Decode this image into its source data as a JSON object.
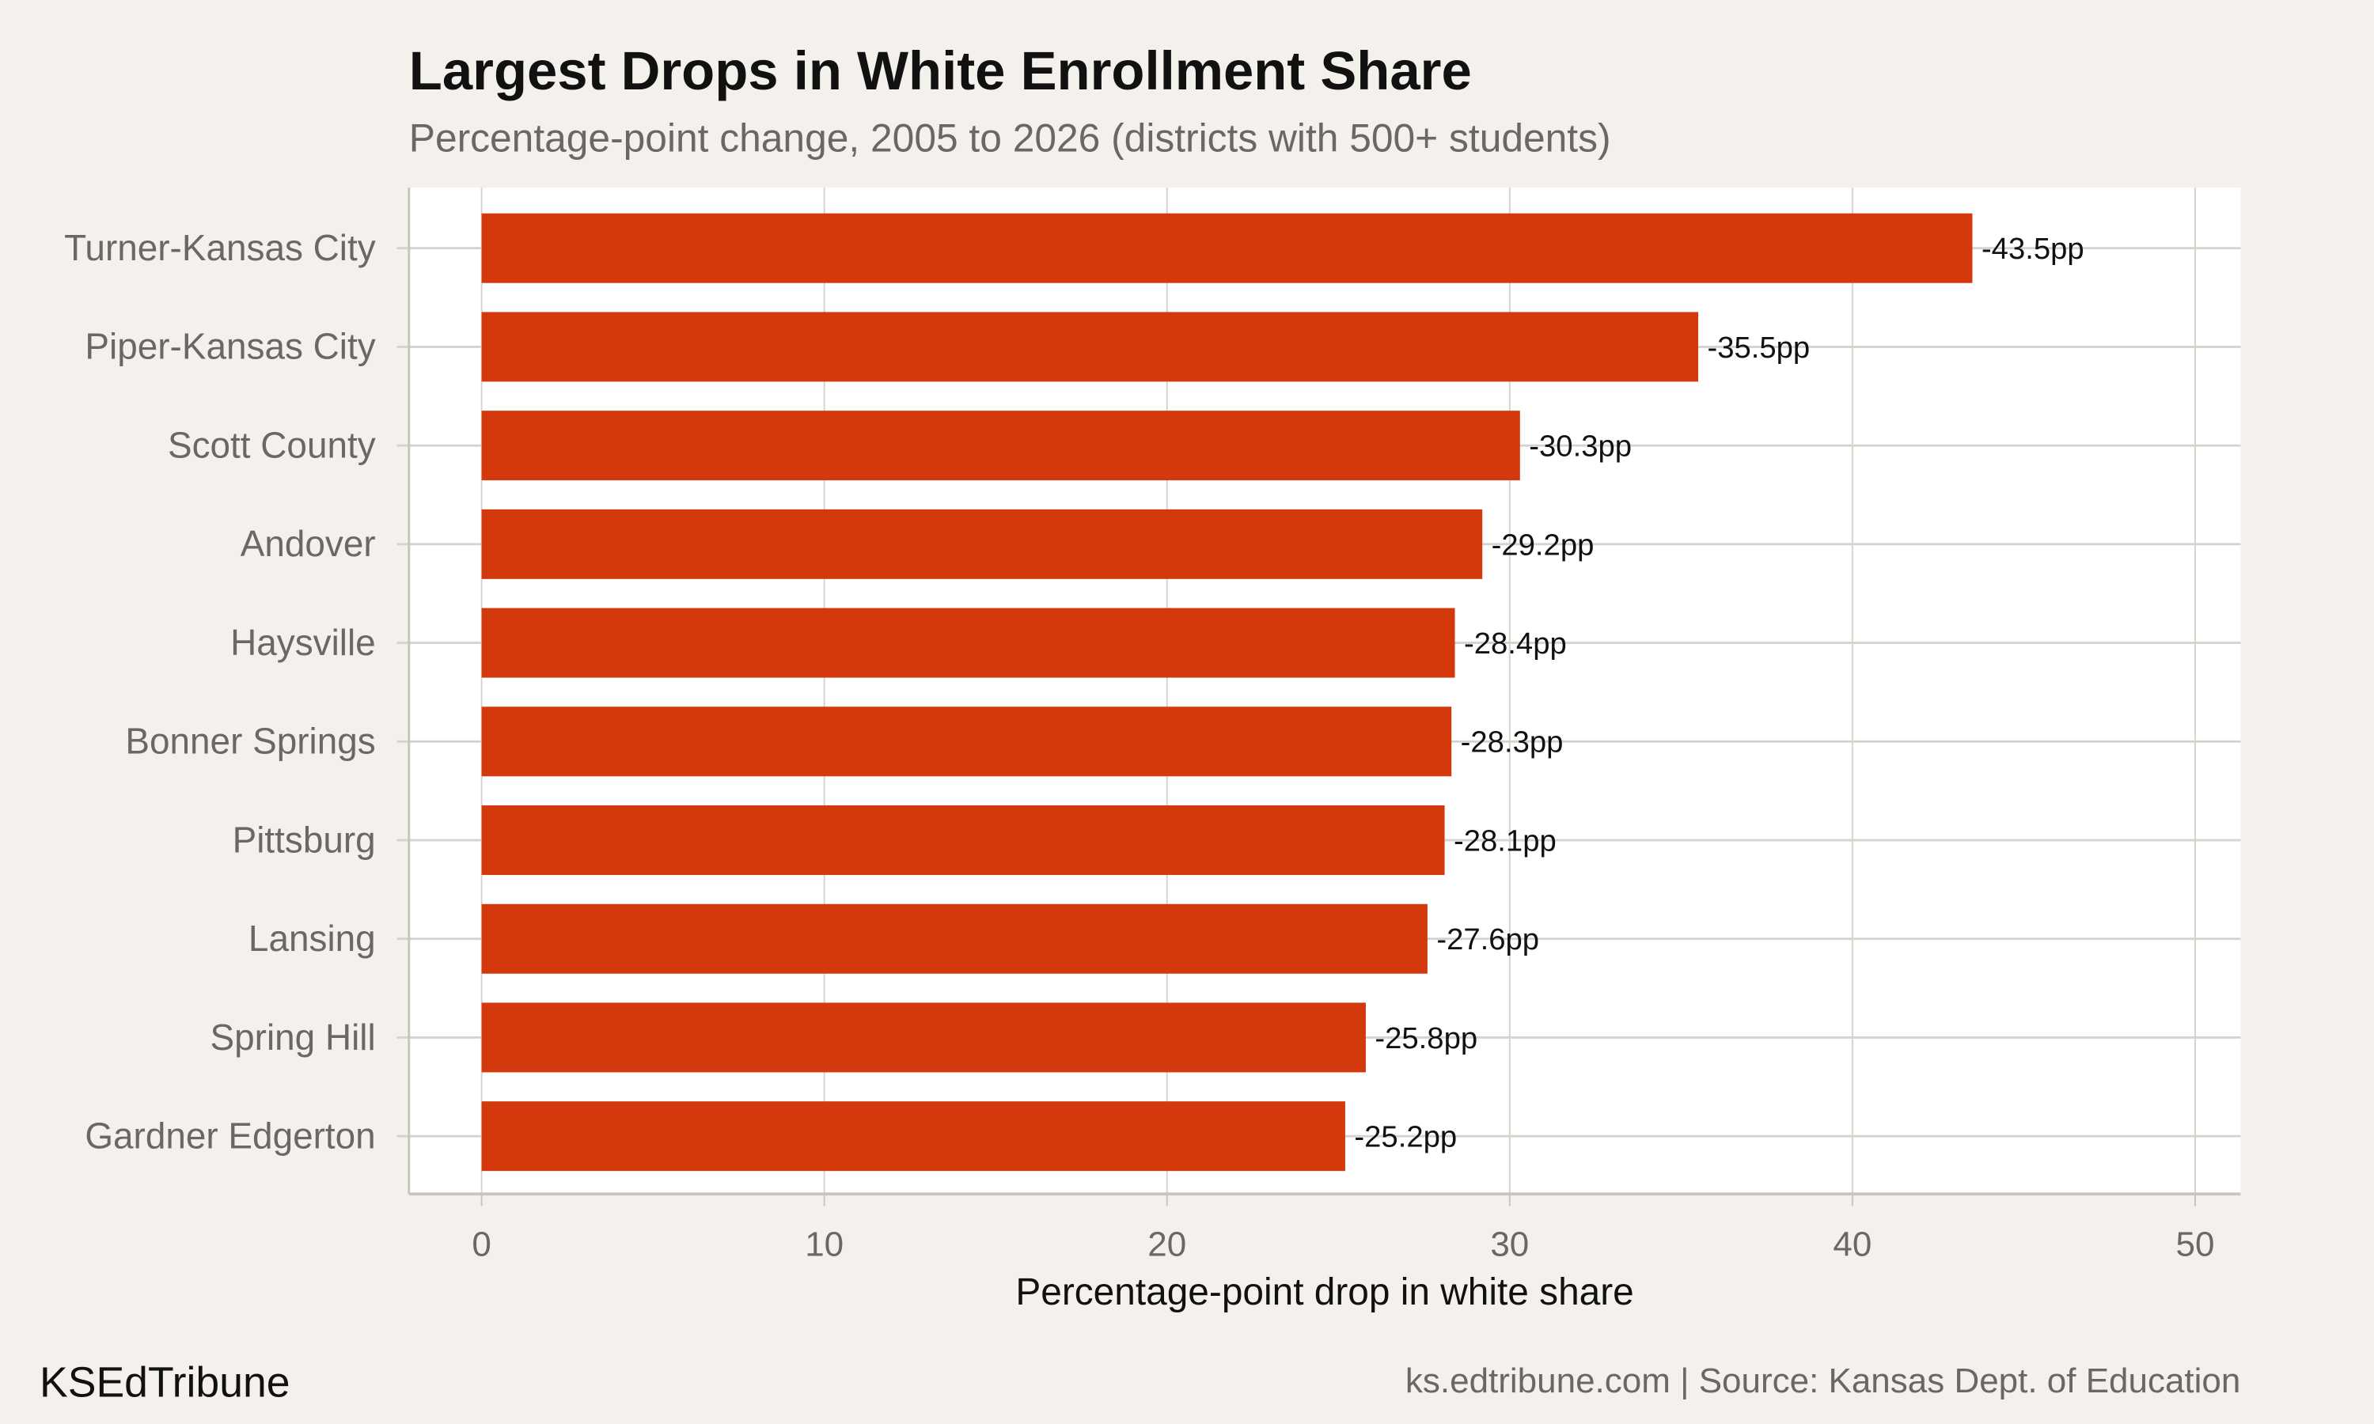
{
  "chart_data": {
    "type": "bar",
    "orientation": "horizontal",
    "title": "Largest Drops in White Enrollment Share",
    "subtitle": "Percentage-point change, 2005 to 2026 (districts with 500+ students)",
    "xlabel": "Percentage-point drop in white share",
    "ylabel": "",
    "xlim": [
      0,
      50
    ],
    "xticks": [
      "0",
      "10",
      "20",
      "30",
      "40",
      "50"
    ],
    "grid": true,
    "categories": [
      "Turner-Kansas City",
      "Piper-Kansas City",
      "Scott County",
      "Andover",
      "Haysville",
      "Bonner Springs",
      "Pittsburg",
      "Lansing",
      "Spring Hill",
      "Gardner Edgerton"
    ],
    "values": [
      43.5,
      35.5,
      30.3,
      29.2,
      28.4,
      28.3,
      28.1,
      27.6,
      25.8,
      25.2
    ],
    "data_labels": [
      "-43.5pp",
      "-35.5pp",
      "-30.3pp",
      "-29.2pp",
      "-28.4pp",
      "-28.3pp",
      "-28.1pp",
      "-27.6pp",
      "-25.8pp",
      "-25.2pp"
    ],
    "bar_color": "#d4380d"
  },
  "footer": {
    "brand": "KSEdTribune",
    "source": "ks.edtribune.com | Source: Kansas Dept. of Education"
  }
}
